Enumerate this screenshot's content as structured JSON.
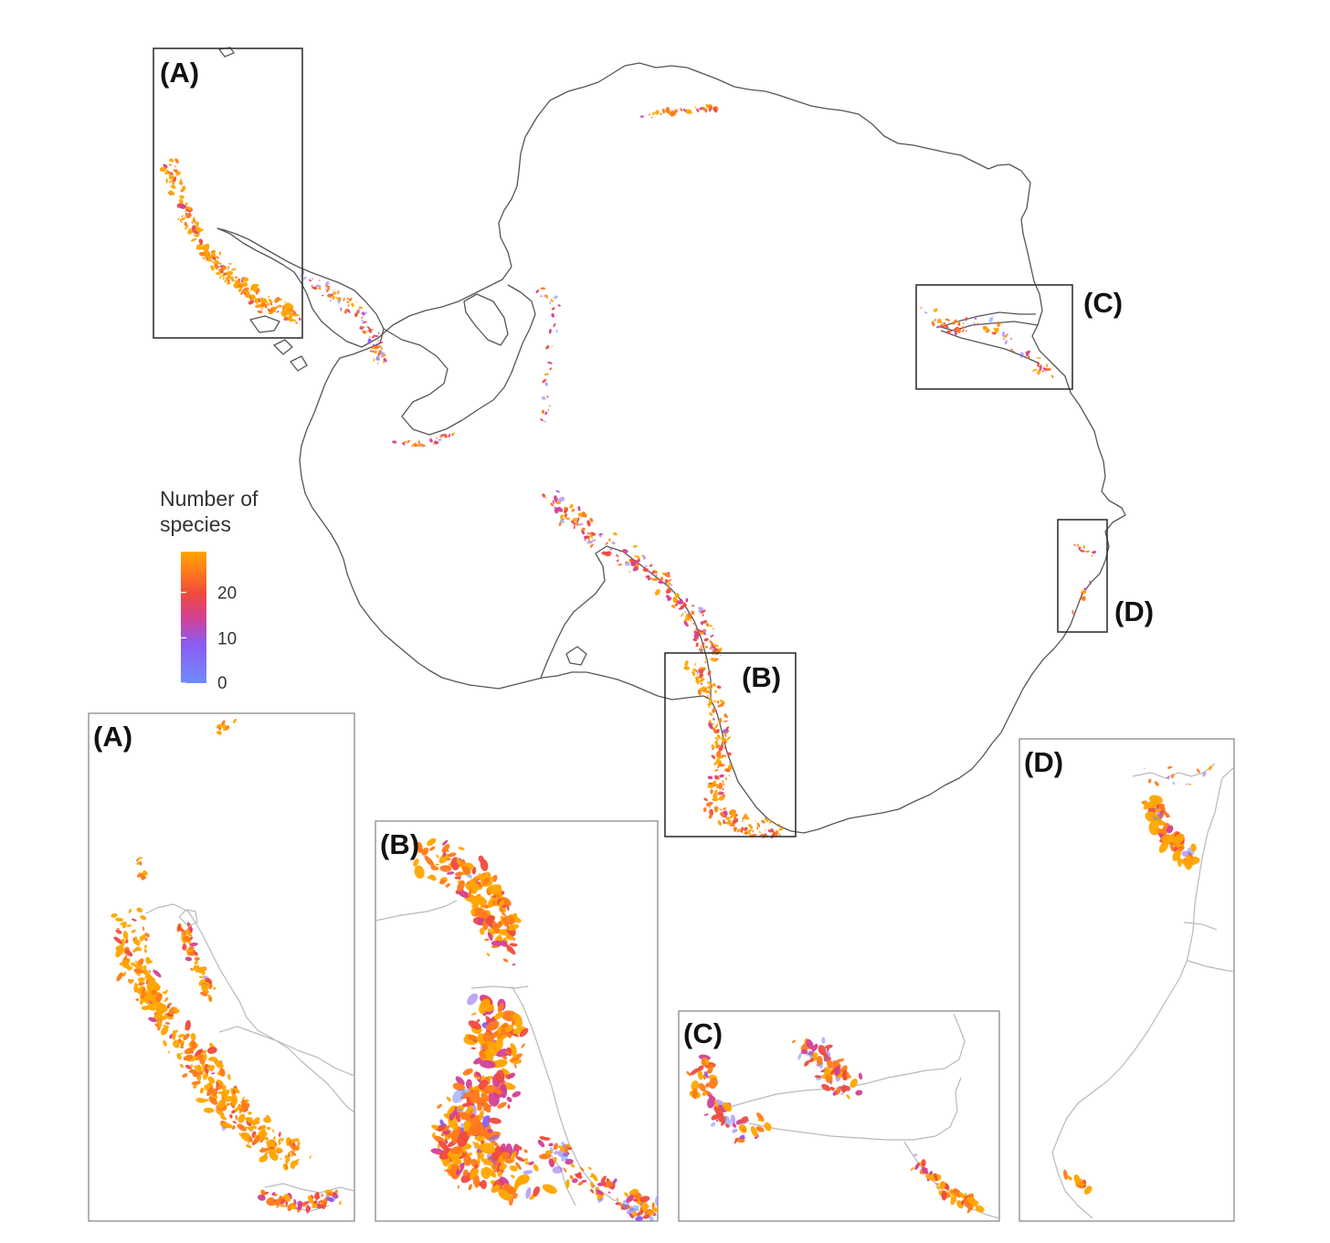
{
  "legend": {
    "title_line1": "Number of",
    "title_line2": "species",
    "ticks": [
      {
        "label": "20",
        "value": 20
      },
      {
        "label": "10",
        "value": 10
      },
      {
        "label": "0",
        "value": 0
      }
    ],
    "scale_min": 0,
    "scale_max": 29,
    "colors": [
      "#6f8bff",
      "#8a5cf0",
      "#d43f93",
      "#ef4a3f",
      "#ff7a1a",
      "#ffa500"
    ]
  },
  "map_panels": [
    {
      "id": "A",
      "label": "(A)"
    },
    {
      "id": "B",
      "label": "(B)"
    },
    {
      "id": "C",
      "label": "(C)"
    },
    {
      "id": "D",
      "label": "(D)"
    }
  ],
  "inset_panels": [
    {
      "id": "A",
      "label": "(A)"
    },
    {
      "id": "B",
      "label": "(B)"
    },
    {
      "id": "C",
      "label": "(C)"
    },
    {
      "id": "D",
      "label": "(D)"
    }
  ]
}
